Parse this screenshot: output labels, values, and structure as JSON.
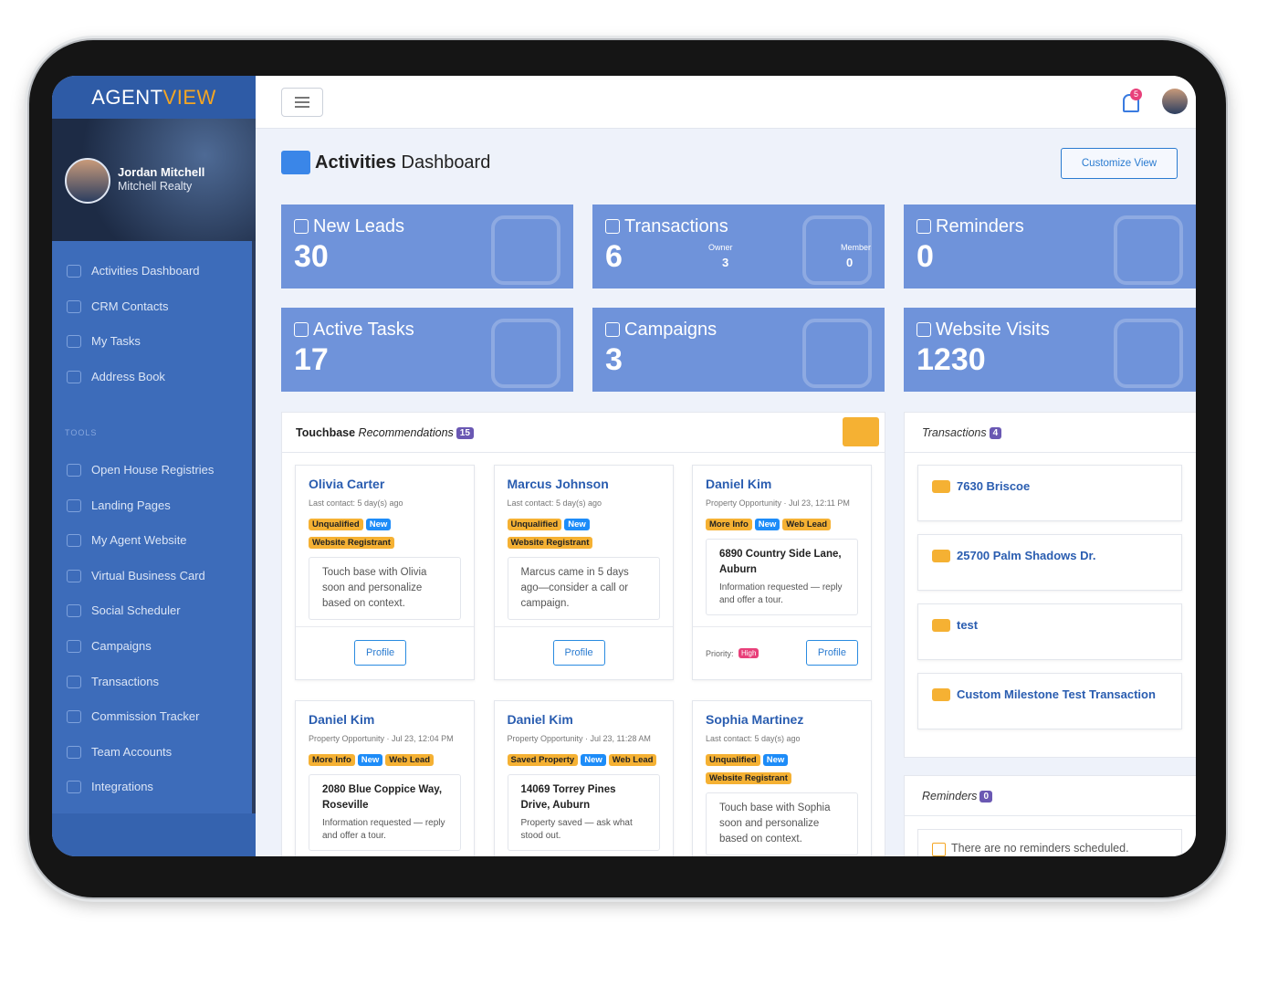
{
  "brand": {
    "part1": "AGENT",
    "part2": "VIEW"
  },
  "user": {
    "name": "Jordan Mitchell",
    "company": "Mitchell Realty"
  },
  "nav": {
    "main": [
      "Activities Dashboard",
      "CRM Contacts",
      "My Tasks",
      "Address Book"
    ],
    "tools_label": "TOOLS",
    "tools": [
      "Open House Registries",
      "Landing Pages",
      "My Agent Website",
      "Virtual Business Card",
      "Social Scheduler",
      "Campaigns",
      "Transactions",
      "Commission Tracker",
      "Team Accounts",
      "Integrations"
    ]
  },
  "topbar": {
    "notifications": 5
  },
  "header": {
    "title_bold": "Activities",
    "title_rest": "Dashboard",
    "button": "Customize View"
  },
  "stats": [
    {
      "label": "New Leads",
      "value": 30
    },
    {
      "label": "Transactions",
      "value": 6,
      "owner_label": "Owner",
      "owner": 3,
      "member_label": "Member",
      "member": 0
    },
    {
      "label": "Reminders",
      "value": 0
    },
    {
      "label": "Active Tasks",
      "value": 17
    },
    {
      "label": "Campaigns",
      "value": 3
    },
    {
      "label": "Website Visits",
      "value": 1230
    }
  ],
  "touchbase": {
    "title": "Touchbase",
    "subtitle": "Recommendations",
    "count": 15,
    "cards": [
      {
        "name": "Olivia Carter",
        "meta": "Last contact: 5 day(s) ago",
        "tags": [
          {
            "text": "Unqualified",
            "color": "#f5b133"
          },
          {
            "text": "New",
            "color": "#1d8cf8"
          },
          {
            "text": "Website Registrant",
            "color": "#f5b133"
          }
        ],
        "note": "Touch base with Olivia soon and personalize based on context.",
        "button": "Profile"
      },
      {
        "name": "Marcus Johnson",
        "meta": "Last contact: 5 day(s) ago",
        "tags": [
          {
            "text": "Unqualified",
            "color": "#f5b133"
          },
          {
            "text": "New",
            "color": "#1d8cf8"
          },
          {
            "text": "Website Registrant",
            "color": "#f5b133"
          }
        ],
        "note": "Marcus came in 5 days ago—consider a call or campaign.",
        "button": "Profile"
      },
      {
        "name": "Daniel Kim",
        "meta": "Property Opportunity · Jul 23, 12:11 PM",
        "tags": [
          {
            "text": "More Info",
            "color": "#f5b133"
          },
          {
            "text": "New",
            "color": "#1d8cf8"
          },
          {
            "text": "Web Lead",
            "color": "#f5b133"
          }
        ],
        "address": "6890 Country Side Lane, Auburn",
        "note": "Information requested — reply and offer a tour.",
        "priority_label": "Priority:",
        "priority": "High",
        "button": "Profile"
      },
      {
        "name": "Daniel Kim",
        "meta": "Property Opportunity · Jul 23, 12:04 PM",
        "tags": [
          {
            "text": "More Info",
            "color": "#f5b133"
          },
          {
            "text": "New",
            "color": "#1d8cf8"
          },
          {
            "text": "Web Lead",
            "color": "#f5b133"
          }
        ],
        "address": "2080 Blue Coppice Way, Roseville",
        "note": "Information requested — reply and offer a tour."
      },
      {
        "name": "Daniel Kim",
        "meta": "Property Opportunity · Jul 23, 11:28 AM",
        "tags": [
          {
            "text": "Saved Property",
            "color": "#f5b133"
          },
          {
            "text": "New",
            "color": "#1d8cf8"
          },
          {
            "text": "Web Lead",
            "color": "#f5b133"
          }
        ],
        "address": "14069 Torrey Pines Drive, Auburn",
        "note": "Property saved — ask what stood out."
      },
      {
        "name": "Sophia Martinez",
        "meta": "Last contact: 5 day(s) ago",
        "tags": [
          {
            "text": "Unqualified",
            "color": "#f5b133"
          },
          {
            "text": "New",
            "color": "#1d8cf8"
          },
          {
            "text": "Website Registrant",
            "color": "#f5b133"
          }
        ],
        "note": "Touch base with Sophia soon and personalize based on context."
      }
    ]
  },
  "transactions": {
    "title": "Transactions",
    "count": 4,
    "items": [
      "7630 Briscoe",
      "25700 Palm Shadows Dr.",
      "test",
      "Custom Milestone Test Transaction"
    ]
  },
  "reminders": {
    "title": "Reminders",
    "count": 0,
    "empty": "There are no reminders scheduled."
  }
}
